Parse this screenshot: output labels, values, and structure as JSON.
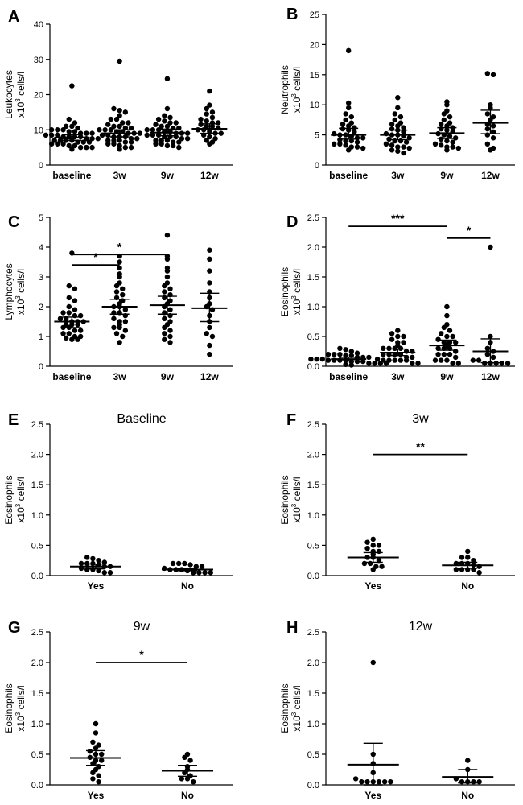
{
  "figure": {
    "colors": {
      "ink": "#000000",
      "background": "#ffffff"
    }
  },
  "chart_data": [
    {
      "id": "A",
      "letter": "A",
      "type": "scatter",
      "title": "",
      "ylabel_lines": [
        "Leukocytes",
        "x10^3 cells/l"
      ],
      "ylim": [
        0,
        40
      ],
      "yticks": [
        0,
        10,
        20,
        30,
        40
      ],
      "categories": [
        "baseline",
        "3w",
        "9w",
        "12w"
      ],
      "series": [
        {
          "name": "baseline",
          "mean": 7.8,
          "err_low": 7.0,
          "err_high": 8.6,
          "points": [
            22.5,
            13,
            12,
            11,
            11,
            10.5,
            10,
            10,
            10,
            9.5,
            9.5,
            9,
            9,
            9,
            8.5,
            8.5,
            8.5,
            8,
            8,
            8,
            8,
            7.5,
            7.5,
            7.5,
            7,
            7,
            7,
            7,
            6.5,
            6.5,
            6.5,
            6,
            6,
            6,
            5.5,
            5.5,
            5,
            5,
            5,
            4.5
          ]
        },
        {
          "name": "3w",
          "mean": 9.0,
          "err_low": 8.0,
          "err_high": 10.0,
          "points": [
            29.5,
            16,
            15.5,
            15,
            14,
            13,
            13,
            12,
            12,
            11.5,
            11,
            11,
            10.5,
            10.5,
            10,
            10,
            10,
            9.5,
            9.5,
            9,
            9,
            9,
            8.5,
            8.5,
            8,
            8,
            8,
            7.5,
            7.5,
            7,
            7,
            7,
            6.5,
            6.5,
            6,
            6,
            5.5,
            5,
            5,
            4.5
          ]
        },
        {
          "name": "9w",
          "mean": 9.2,
          "err_low": 8.3,
          "err_high": 10.2,
          "points": [
            24.5,
            16,
            14,
            13.5,
            13,
            12.5,
            12,
            12,
            11.5,
            11,
            11,
            10.5,
            10.5,
            10,
            10,
            10,
            9.5,
            9.5,
            9,
            9,
            9,
            8.5,
            8.5,
            8.5,
            8,
            8,
            8,
            7.5,
            7.5,
            7,
            7,
            7,
            6.5,
            6.5,
            6,
            6,
            5.5,
            5.5,
            5
          ]
        },
        {
          "name": "12w",
          "mean": 10.3,
          "err_low": 9.0,
          "err_high": 11.7,
          "points": [
            21,
            17,
            16,
            15,
            14.5,
            13.5,
            13,
            12.5,
            12,
            12,
            11.5,
            11,
            11,
            10.5,
            10,
            10,
            9.5,
            9,
            9,
            8.5,
            8,
            7.5,
            7,
            6.5,
            6
          ]
        }
      ],
      "significance": []
    },
    {
      "id": "B",
      "letter": "B",
      "type": "scatter",
      "title": "",
      "ylabel_lines": [
        "Neutrophils",
        "x10^3 cells/l"
      ],
      "ylim": [
        0,
        25
      ],
      "yticks": [
        0,
        5,
        10,
        15,
        20,
        25
      ],
      "categories": [
        "baseline",
        "3w",
        "9w",
        "12w"
      ],
      "series": [
        {
          "name": "baseline",
          "mean": 5.0,
          "err_low": 4.3,
          "err_high": 6.1,
          "points": [
            19,
            10.3,
            9.5,
            8.5,
            8,
            7.5,
            7,
            6.8,
            6.5,
            6.2,
            6,
            5.8,
            5.5,
            5.2,
            5,
            5,
            4.8,
            4.5,
            4.5,
            4.2,
            4,
            4,
            3.8,
            3.5,
            3.5,
            3.3,
            3,
            3,
            2.8,
            2.5
          ]
        },
        {
          "name": "3w",
          "mean": 5.0,
          "err_low": 4.2,
          "err_high": 5.8,
          "points": [
            11.2,
            9.5,
            8.5,
            8,
            7.5,
            7,
            6.8,
            6.5,
            6.2,
            6,
            5.8,
            5.5,
            5.2,
            5,
            5,
            4.8,
            4.5,
            4.3,
            4,
            4,
            3.8,
            3.5,
            3.3,
            3,
            3,
            2.8,
            2.5,
            2.3,
            2
          ]
        },
        {
          "name": "9w",
          "mean": 5.3,
          "err_low": 4.4,
          "err_high": 6.2,
          "points": [
            10.5,
            10,
            9,
            8.5,
            8,
            7.5,
            7,
            6.8,
            6.5,
            6.2,
            6,
            5.8,
            5.5,
            5.2,
            5,
            4.8,
            4.5,
            4.3,
            4,
            3.8,
            3.5,
            3.3,
            3,
            3,
            2.8,
            2.5
          ]
        },
        {
          "name": "12w",
          "mean": 7.0,
          "err_low": 5.2,
          "err_high": 9.1,
          "points": [
            15.2,
            15,
            10,
            9.5,
            8.5,
            8,
            7.5,
            6.8,
            6.5,
            6,
            5.5,
            5,
            4.5,
            3.5,
            2.8,
            2.5
          ]
        }
      ],
      "significance": []
    },
    {
      "id": "C",
      "letter": "C",
      "type": "scatter",
      "title": "",
      "ylabel_lines": [
        "Lymphocytes",
        "x10^3 cells/l"
      ],
      "ylim": [
        0,
        5
      ],
      "yticks": [
        0,
        1,
        2,
        3,
        4,
        5
      ],
      "categories": [
        "baseline",
        "3w",
        "9w",
        "12w"
      ],
      "series": [
        {
          "name": "baseline",
          "mean": 1.5,
          "err_low": 1.3,
          "err_high": 1.65,
          "points": [
            3.8,
            2.7,
            2.6,
            2.3,
            2.2,
            2.0,
            1.9,
            1.8,
            1.8,
            1.7,
            1.7,
            1.6,
            1.6,
            1.5,
            1.5,
            1.5,
            1.4,
            1.4,
            1.4,
            1.3,
            1.3,
            1.2,
            1.2,
            1.1,
            1.1,
            1.0,
            1.0,
            0.95,
            0.9,
            0.9
          ]
        },
        {
          "name": "3w",
          "mean": 2.0,
          "err_low": 1.75,
          "err_high": 2.25,
          "points": [
            3.7,
            3.5,
            3.3,
            3.1,
            3.0,
            2.8,
            2.7,
            2.6,
            2.5,
            2.4,
            2.3,
            2.2,
            2.1,
            2.0,
            2.0,
            1.9,
            1.8,
            1.8,
            1.7,
            1.6,
            1.5,
            1.5,
            1.4,
            1.3,
            1.3,
            1.2,
            1.1,
            1.0,
            0.8
          ]
        },
        {
          "name": "9w",
          "mean": 2.05,
          "err_low": 1.75,
          "err_high": 2.35,
          "points": [
            4.4,
            3.7,
            3.6,
            3.3,
            3.2,
            3.0,
            2.8,
            2.7,
            2.6,
            2.5,
            2.4,
            2.3,
            2.2,
            2.1,
            2.0,
            1.9,
            1.8,
            1.7,
            1.6,
            1.5,
            1.4,
            1.3,
            1.2,
            1.1,
            1.0,
            0.9,
            0.8
          ]
        },
        {
          "name": "12w",
          "mean": 1.95,
          "err_low": 1.5,
          "err_high": 2.45,
          "points": [
            3.9,
            3.6,
            3.2,
            2.8,
            2.5,
            2.3,
            2.1,
            2.0,
            1.9,
            1.7,
            1.5,
            1.3,
            1.1,
            1.0,
            0.7,
            0.4
          ]
        }
      ],
      "significance": [
        {
          "from": 0,
          "to": 1,
          "y": 3.4,
          "label": "*"
        },
        {
          "from": 0,
          "to": 2,
          "y": 3.75,
          "label": "*"
        }
      ]
    },
    {
      "id": "D",
      "letter": "D",
      "type": "scatter",
      "title": "",
      "ylabel_lines": [
        "Eosinophils",
        "x10^3 cells/l"
      ],
      "ylim": [
        0,
        2.5
      ],
      "yticks": [
        "0.0",
        "0.5",
        "1.0",
        "1.5",
        "2.0",
        "2.5"
      ],
      "categories": [
        "baseline",
        "3w",
        "9w",
        "12w"
      ],
      "series": [
        {
          "name": "baseline",
          "mean": 0.12,
          "err_low": 0.09,
          "err_high": 0.15,
          "points": [
            0.3,
            0.28,
            0.25,
            0.22,
            0.2,
            0.2,
            0.2,
            0.18,
            0.18,
            0.15,
            0.15,
            0.15,
            0.12,
            0.12,
            0.12,
            0.1,
            0.1,
            0.1,
            0.1,
            0.08,
            0.08,
            0.08,
            0.05,
            0.05,
            0.05,
            0.05,
            0.03,
            0.02
          ]
        },
        {
          "name": "3w",
          "mean": 0.23,
          "err_low": 0.18,
          "err_high": 0.29,
          "points": [
            0.6,
            0.55,
            0.5,
            0.5,
            0.45,
            0.4,
            0.4,
            0.35,
            0.3,
            0.3,
            0.3,
            0.3,
            0.25,
            0.25,
            0.2,
            0.2,
            0.2,
            0.2,
            0.15,
            0.15,
            0.12,
            0.1,
            0.1,
            0.1,
            0.1,
            0.1,
            0.05,
            0.05
          ]
        },
        {
          "name": "9w",
          "mean": 0.35,
          "err_low": 0.27,
          "err_high": 0.44,
          "points": [
            1.0,
            0.85,
            0.7,
            0.65,
            0.6,
            0.55,
            0.5,
            0.5,
            0.45,
            0.4,
            0.4,
            0.4,
            0.35,
            0.3,
            0.3,
            0.3,
            0.25,
            0.2,
            0.2,
            0.2,
            0.15,
            0.1,
            0.1,
            0.1,
            0.05,
            0.05
          ]
        },
        {
          "name": "12w",
          "mean": 0.25,
          "err_low": 0.06,
          "err_high": 0.46,
          "points": [
            2.0,
            0.5,
            0.4,
            0.3,
            0.25,
            0.2,
            0.15,
            0.1,
            0.1,
            0.05,
            0.05,
            0.05,
            0.05,
            0.05
          ]
        }
      ],
      "significance": [
        {
          "from": 0,
          "to": 2,
          "y": 2.35,
          "label": "***"
        },
        {
          "from": 2,
          "to": 3,
          "y": 2.15,
          "label": "*"
        }
      ]
    },
    {
      "id": "E",
      "letter": "E",
      "type": "scatter",
      "title": "Baseline",
      "ylabel_lines": [
        "Eosinophils",
        "x10^3 cells/l"
      ],
      "ylim": [
        0,
        2.5
      ],
      "yticks": [
        "0.0",
        "0.5",
        "1.0",
        "1.5",
        "2.0",
        "2.5"
      ],
      "categories": [
        "Yes",
        "No"
      ],
      "series": [
        {
          "name": "Yes",
          "mean": 0.15,
          "err_low": 0.11,
          "err_high": 0.19,
          "points": [
            0.3,
            0.28,
            0.25,
            0.22,
            0.2,
            0.2,
            0.2,
            0.18,
            0.15,
            0.15,
            0.12,
            0.1,
            0.1,
            0.08,
            0.05,
            0.05
          ]
        },
        {
          "name": "No",
          "mean": 0.1,
          "err_low": 0.08,
          "err_high": 0.12,
          "points": [
            0.2,
            0.2,
            0.2,
            0.18,
            0.15,
            0.15,
            0.12,
            0.1,
            0.1,
            0.1,
            0.08,
            0.05,
            0.05,
            0.05,
            0.05
          ]
        }
      ],
      "significance": []
    },
    {
      "id": "F",
      "letter": "F",
      "type": "scatter",
      "title": "3w",
      "ylabel_lines": [
        "Eosinophils",
        "x10^3 cells/l"
      ],
      "ylim": [
        0,
        2.5
      ],
      "yticks": [
        "0.0",
        "0.5",
        "1.0",
        "1.5",
        "2.0",
        "2.5"
      ],
      "categories": [
        "Yes",
        "No"
      ],
      "series": [
        {
          "name": "Yes",
          "mean": 0.3,
          "err_low": 0.22,
          "err_high": 0.38,
          "points": [
            0.6,
            0.55,
            0.5,
            0.5,
            0.45,
            0.4,
            0.4,
            0.35,
            0.3,
            0.3,
            0.25,
            0.2,
            0.2,
            0.15,
            0.15,
            0.1
          ]
        },
        {
          "name": "No",
          "mean": 0.17,
          "err_low": 0.12,
          "err_high": 0.22,
          "points": [
            0.4,
            0.3,
            0.3,
            0.25,
            0.2,
            0.2,
            0.2,
            0.18,
            0.15,
            0.1,
            0.1,
            0.1,
            0.1,
            0.05
          ]
        }
      ],
      "significance": [
        {
          "from": 0,
          "to": 1,
          "y": 2.0,
          "label": "**"
        }
      ]
    },
    {
      "id": "G",
      "letter": "G",
      "type": "scatter",
      "title": "9w",
      "ylabel_lines": [
        "Eosinophils",
        "x10^3 cells/l"
      ],
      "ylim": [
        0,
        2.5
      ],
      "yticks": [
        "0.0",
        "0.5",
        "1.0",
        "1.5",
        "2.0",
        "2.5"
      ],
      "categories": [
        "Yes",
        "No"
      ],
      "series": [
        {
          "name": "Yes",
          "mean": 0.44,
          "err_low": 0.32,
          "err_high": 0.56,
          "points": [
            1.0,
            0.85,
            0.7,
            0.65,
            0.6,
            0.55,
            0.5,
            0.5,
            0.45,
            0.4,
            0.4,
            0.35,
            0.3,
            0.25,
            0.2,
            0.15,
            0.1,
            0.05
          ]
        },
        {
          "name": "No",
          "mean": 0.23,
          "err_low": 0.14,
          "err_high": 0.32,
          "points": [
            0.5,
            0.45,
            0.4,
            0.3,
            0.25,
            0.2,
            0.15,
            0.1,
            0.1,
            0.05
          ]
        }
      ],
      "significance": [
        {
          "from": 0,
          "to": 1,
          "y": 2.0,
          "label": "*"
        }
      ]
    },
    {
      "id": "H",
      "letter": "H",
      "type": "scatter",
      "title": "12w",
      "ylabel_lines": [
        "Eosinophils",
        "x10^3 cells/l"
      ],
      "ylim": [
        0,
        2.5
      ],
      "yticks": [
        "0.0",
        "0.5",
        "1.0",
        "1.5",
        "2.0",
        "2.5"
      ],
      "categories": [
        "Yes",
        "No"
      ],
      "series": [
        {
          "name": "Yes",
          "mean": 0.33,
          "err_low": 0.0,
          "err_high": 0.68,
          "points": [
            2.0,
            0.5,
            0.35,
            0.2,
            0.1,
            0.05,
            0.05,
            0.05,
            0.05,
            0.05,
            0.05
          ]
        },
        {
          "name": "No",
          "mean": 0.13,
          "err_low": 0.03,
          "err_high": 0.25,
          "points": [
            0.4,
            0.25,
            0.1,
            0.05,
            0.05,
            0.05,
            0.05
          ]
        }
      ],
      "significance": []
    }
  ]
}
